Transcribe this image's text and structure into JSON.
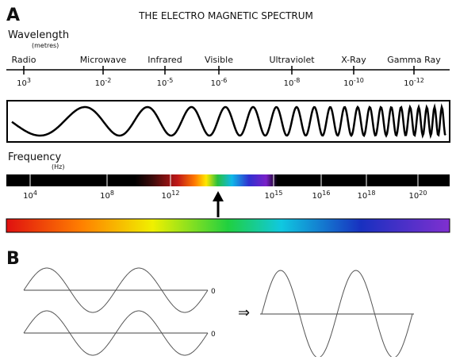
{
  "panel_a": {
    "label": "A",
    "title": "THE ELECTRO MAGNETIC SPECTRUM",
    "wavelength": {
      "label": "Wavelength",
      "unit": "(metres)",
      "ticks": [
        {
          "name": "Radio",
          "base": "10",
          "exp": "3"
        },
        {
          "name": "Microwave",
          "base": "10",
          "exp": "-2"
        },
        {
          "name": "Infrared",
          "base": "10",
          "exp": "-5"
        },
        {
          "name": "Visible",
          "base": "10",
          "exp": "-6"
        },
        {
          "name": "Ultraviolet",
          "base": "10",
          "exp": "-8"
        },
        {
          "name": "X-Ray",
          "base": "10",
          "exp": "-10"
        },
        {
          "name": "Gamma Ray",
          "base": "10",
          "exp": "-12"
        }
      ]
    },
    "frequency": {
      "label": "Frequency",
      "unit": "(Hz)",
      "ticks": [
        {
          "base": "10",
          "exp": "4"
        },
        {
          "base": "10",
          "exp": "8"
        },
        {
          "base": "10",
          "exp": "12"
        },
        {
          "base": "10",
          "exp": "15"
        },
        {
          "base": "10",
          "exp": "16"
        },
        {
          "base": "10",
          "exp": "18"
        },
        {
          "base": "10",
          "exp": "20"
        }
      ]
    }
  },
  "panel_b": {
    "label": "B",
    "zero_labels": [
      "0",
      "0"
    ],
    "arrow": "⇒"
  }
}
